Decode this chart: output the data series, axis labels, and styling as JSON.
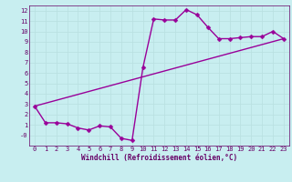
{
  "title": "",
  "xlabel": "Windchill (Refroidissement éolien,°C)",
  "bg_color": "#c8eef0",
  "line_color": "#990099",
  "grid_color": "#b8dfe0",
  "text_color": "#660066",
  "xlim": [
    -0.5,
    23.5
  ],
  "ylim": [
    -1.0,
    12.5
  ],
  "xticks": [
    0,
    1,
    2,
    3,
    4,
    5,
    6,
    7,
    8,
    9,
    10,
    11,
    12,
    13,
    14,
    15,
    16,
    17,
    18,
    19,
    20,
    21,
    22,
    23
  ],
  "yticks": [
    0,
    1,
    2,
    3,
    4,
    5,
    6,
    7,
    8,
    9,
    10,
    11,
    12
  ],
  "ytick_labels": [
    "-0",
    "1",
    "2",
    "3",
    "4",
    "5",
    "6",
    "7",
    "8",
    "9",
    "10",
    "11",
    "12"
  ],
  "series1_x": [
    0,
    1,
    2,
    3,
    4,
    5,
    6,
    7,
    8,
    9,
    10,
    11,
    12,
    13,
    14,
    15,
    16,
    17,
    18,
    19,
    20,
    21,
    22,
    23
  ],
  "series1_y": [
    2.8,
    1.2,
    1.2,
    1.1,
    0.7,
    0.5,
    0.9,
    0.8,
    -0.3,
    -0.5,
    6.5,
    11.2,
    11.1,
    11.1,
    12.1,
    11.6,
    10.4,
    9.3,
    9.3,
    9.4,
    9.5,
    9.5,
    10.0,
    9.3
  ],
  "series2_x": [
    0,
    23
  ],
  "series2_y": [
    2.8,
    9.3
  ],
  "marker_size": 2.5,
  "linewidth": 1.0,
  "tick_fontsize": 5.0,
  "xlabel_fontsize": 5.5
}
